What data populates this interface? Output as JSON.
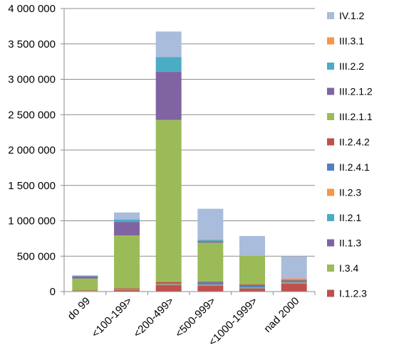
{
  "chart_data": {
    "type": "bar",
    "stacked": true,
    "categories": [
      "do 99",
      "<100-199>",
      "<200-499>",
      "<500-999>",
      "<1000-1999>",
      "nad 2000"
    ],
    "ylim": [
      0,
      4000000
    ],
    "yticks": [
      0,
      500000,
      1000000,
      1500000,
      2000000,
      2500000,
      3000000,
      3500000,
      4000000
    ],
    "ytick_labels": [
      "0",
      "500 000",
      "1 000 000",
      "1 500 000",
      "2 000 000",
      "2 500 000",
      "3 000 000",
      "3 500 000",
      "4 000 000"
    ],
    "grid": true,
    "legend_position": "right",
    "series": [
      {
        "name": "I.1.2.3",
        "color": "#C0504D",
        "values": [
          5000,
          20000,
          90000,
          80000,
          40000,
          110000
        ]
      },
      {
        "name": "I.3.4",
        "color": "#9BBB59",
        "values": [
          2000,
          3000,
          5000,
          5000,
          5000,
          5000
        ]
      },
      {
        "name": "II.1.3",
        "color": "#8064A2",
        "values": [
          1000,
          2000,
          5000,
          5000,
          5000,
          5000
        ]
      },
      {
        "name": "II.2.1",
        "color": "#4BACC6",
        "values": [
          1000,
          2000,
          5000,
          5000,
          5000,
          5000
        ]
      },
      {
        "name": "II.2.3",
        "color": "#F79646",
        "values": [
          1000,
          2000,
          5000,
          5000,
          5000,
          5000
        ]
      },
      {
        "name": "II.2.4.1",
        "color": "#4F81BD",
        "values": [
          0,
          0,
          0,
          30000,
          30000,
          20000
        ]
      },
      {
        "name": "II.2.4.2",
        "color": "#C0504D",
        "values": [
          5000,
          15000,
          25000,
          10000,
          10000,
          10000
        ]
      },
      {
        "name": "III.2.1.1",
        "color": "#9BBB59",
        "values": [
          170000,
          750000,
          2290000,
          550000,
          410000,
          0
        ]
      },
      {
        "name": "III.2.1.2",
        "color": "#8064A2",
        "values": [
          30000,
          190000,
          680000,
          20000,
          0,
          0
        ]
      },
      {
        "name": "III.2.2",
        "color": "#4BACC6",
        "values": [
          5000,
          35000,
          210000,
          20000,
          0,
          10000
        ]
      },
      {
        "name": "III.3.1",
        "color": "#F79646",
        "values": [
          0,
          0,
          0,
          10000,
          0,
          15000
        ]
      },
      {
        "name": "IV.1.2",
        "color": "#A9BCDB",
        "values": [
          10000,
          99000,
          360000,
          430000,
          275000,
          310000
        ]
      }
    ]
  }
}
